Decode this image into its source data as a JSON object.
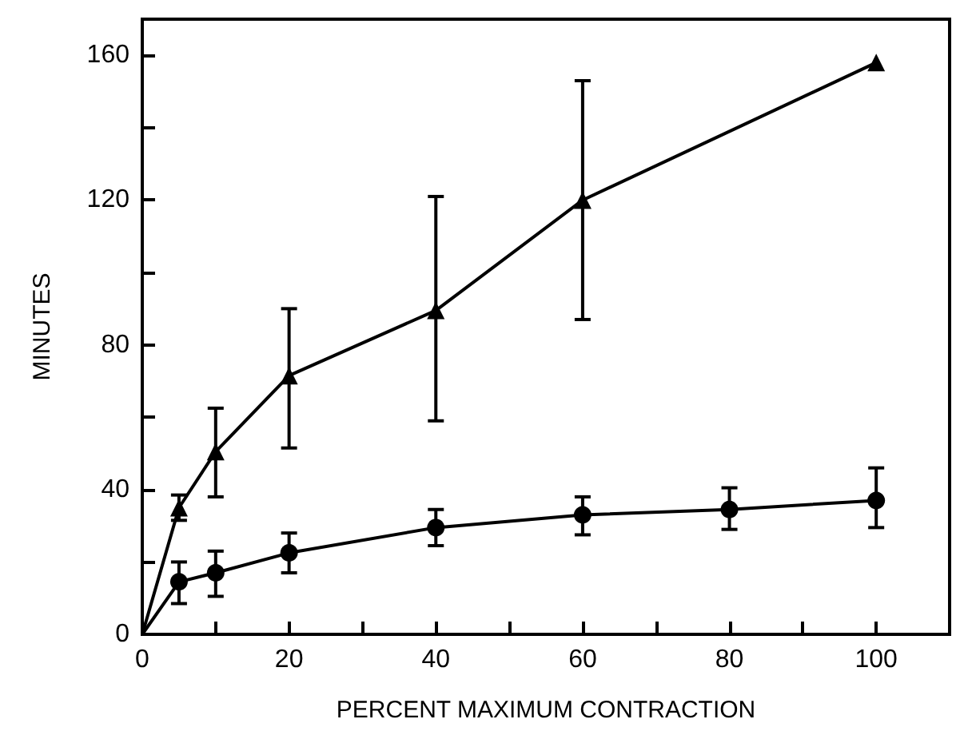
{
  "chart_data": {
    "type": "line",
    "xlabel": "PERCENT MAXIMUM CONTRACTION",
    "ylabel": "MINUTES",
    "xlim": [
      0,
      110
    ],
    "ylim": [
      0,
      170
    ],
    "xticks": [
      0,
      {
        "value": 10,
        "label": null
      },
      20,
      {
        "value": 30,
        "label": null
      },
      40,
      {
        "value": 50,
        "label": null
      },
      60,
      {
        "value": 70,
        "label": null
      },
      80,
      {
        "value": 90,
        "label": null
      },
      100,
      {
        "value": 110,
        "label": null
      }
    ],
    "yticks": [
      0,
      {
        "value": 20,
        "label": null
      },
      40,
      {
        "value": 60,
        "label": null
      },
      80,
      {
        "value": 100,
        "label": null
      },
      120,
      {
        "value": 140,
        "label": null
      },
      160
    ],
    "grid": false,
    "line_style": "solid",
    "series": [
      {
        "color": "#000000",
        "marker": "triangle",
        "x": [
          0,
          5,
          10,
          20,
          40,
          60,
          100
        ],
        "values": [
          0,
          35,
          50.5,
          71.5,
          89.5,
          120,
          158
        ],
        "errors": [
          null,
          [
            31.5,
            38.5
          ],
          [
            38,
            62.5
          ],
          [
            51.5,
            90
          ],
          [
            59,
            121
          ],
          [
            87,
            153
          ],
          null
        ]
      },
      {
        "color": "#000000",
        "marker": "circle",
        "x": [
          0,
          5,
          10,
          20,
          40,
          60,
          80,
          100
        ],
        "values": [
          0,
          14.5,
          17,
          22.5,
          29.5,
          33,
          34.5,
          37
        ],
        "errors": [
          null,
          [
            8.5,
            20
          ],
          [
            10.5,
            23
          ],
          [
            17,
            28
          ],
          [
            24.5,
            34.5
          ],
          [
            27.5,
            38
          ],
          [
            29,
            40.5
          ],
          [
            29.5,
            46
          ]
        ]
      }
    ]
  }
}
